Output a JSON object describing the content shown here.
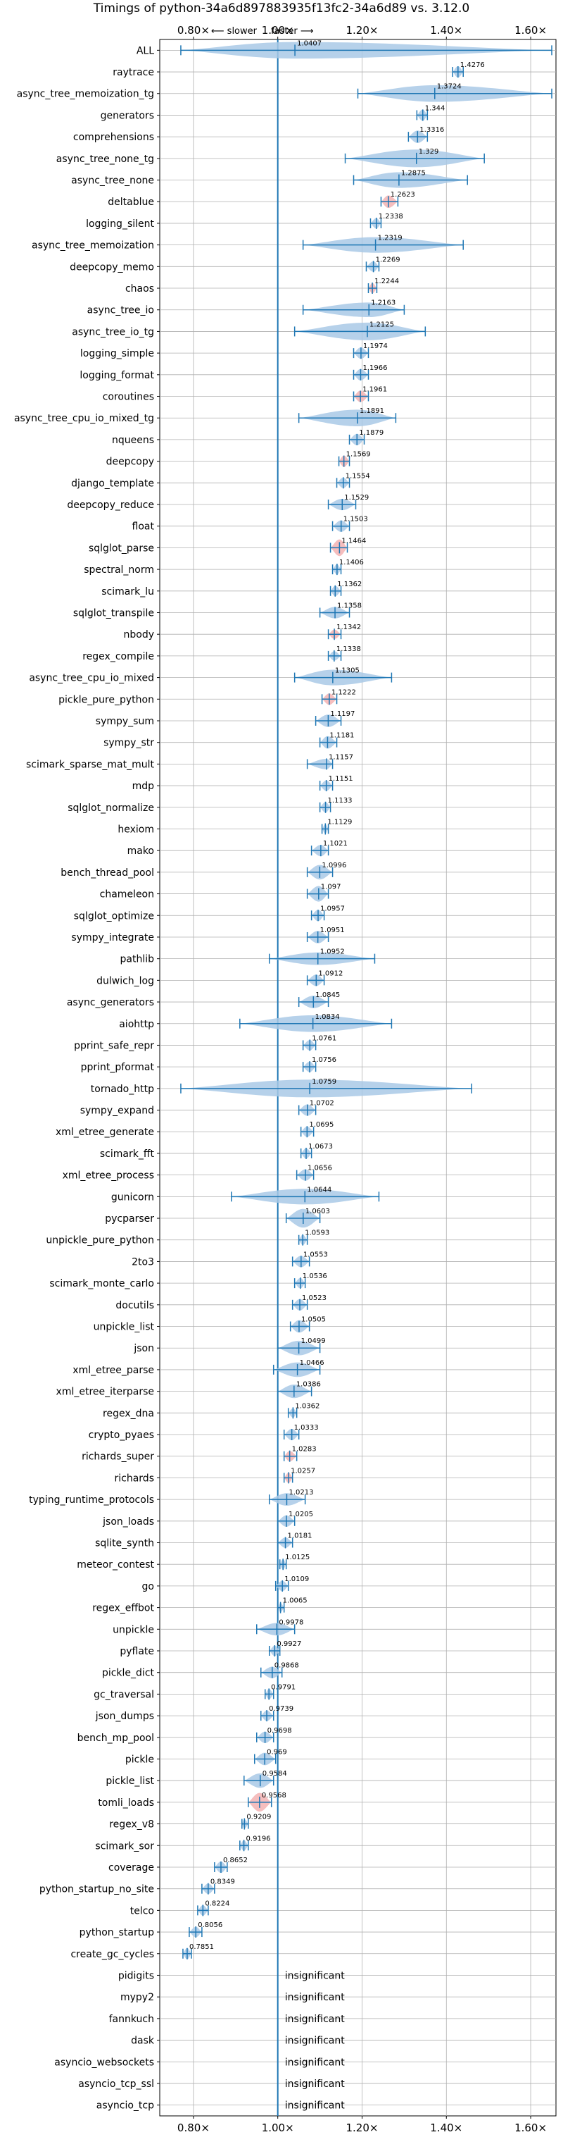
{
  "chart_data": {
    "type": "violin",
    "title": "Timings of python-34a6d897883935f13fc2-34a6d89 vs. 3.12.0",
    "direction_labels": {
      "slower": "⟵ slower",
      "faster": "faster ⟶"
    },
    "xlim": [
      0.72,
      1.66
    ],
    "x_ticks": [
      0.8,
      1.0,
      1.2,
      1.4,
      1.6
    ],
    "x_tick_labels": [
      "0.80×",
      "1.00×",
      "1.20×",
      "1.40×",
      "1.60×"
    ],
    "grid": true,
    "reference_line": 1.0,
    "insignificant_label": "insignificant",
    "colors": {
      "violin": "#a9c9e6",
      "violin_highlight": "#f3b3b3",
      "line": "#1f77b4",
      "grid": "#b0b0b0",
      "ref": "#1f77b4"
    },
    "benchmarks": [
      {
        "name": "ALL",
        "value": 1.0407,
        "lo": 0.77,
        "hi": 1.65,
        "w": 0.8
      },
      {
        "name": "raytrace",
        "value": 1.4276,
        "lo": 1.415,
        "hi": 1.44,
        "w": 0.55
      },
      {
        "name": "async_tree_memoization_tg",
        "value": 1.3724,
        "lo": 1.19,
        "hi": 1.65,
        "w": 0.8
      },
      {
        "name": "generators",
        "value": 1.344,
        "lo": 1.33,
        "hi": 1.355,
        "w": 0.55
      },
      {
        "name": "comprehensions",
        "value": 1.3316,
        "lo": 1.31,
        "hi": 1.355,
        "w": 0.6
      },
      {
        "name": "async_tree_none_tg",
        "value": 1.329,
        "lo": 1.16,
        "hi": 1.49,
        "w": 0.85
      },
      {
        "name": "async_tree_none",
        "value": 1.2875,
        "lo": 1.18,
        "hi": 1.45,
        "w": 0.75
      },
      {
        "name": "deltablue",
        "value": 1.2623,
        "lo": 1.245,
        "hi": 1.285,
        "w": 0.6,
        "highlight": true
      },
      {
        "name": "logging_silent",
        "value": 1.2338,
        "lo": 1.22,
        "hi": 1.245,
        "w": 0.5
      },
      {
        "name": "async_tree_memoization",
        "value": 1.2319,
        "lo": 1.06,
        "hi": 1.44,
        "w": 0.75
      },
      {
        "name": "deepcopy_memo",
        "value": 1.2269,
        "lo": 1.21,
        "hi": 1.24,
        "w": 0.5
      },
      {
        "name": "chaos",
        "value": 1.2244,
        "lo": 1.215,
        "hi": 1.235,
        "w": 0.5,
        "highlight": true
      },
      {
        "name": "async_tree_io",
        "value": 1.2163,
        "lo": 1.06,
        "hi": 1.3,
        "w": 0.7
      },
      {
        "name": "async_tree_io_tg",
        "value": 1.2125,
        "lo": 1.04,
        "hi": 1.35,
        "w": 0.85
      },
      {
        "name": "logging_simple",
        "value": 1.1974,
        "lo": 1.18,
        "hi": 1.215,
        "w": 0.55
      },
      {
        "name": "logging_format",
        "value": 1.1966,
        "lo": 1.18,
        "hi": 1.215,
        "w": 0.55
      },
      {
        "name": "coroutines",
        "value": 1.1961,
        "lo": 1.18,
        "hi": 1.215,
        "w": 0.55,
        "highlight": true
      },
      {
        "name": "async_tree_cpu_io_mixed_tg",
        "value": 1.1891,
        "lo": 1.05,
        "hi": 1.28,
        "w": 0.8
      },
      {
        "name": "nqueens",
        "value": 1.1879,
        "lo": 1.17,
        "hi": 1.205,
        "w": 0.55
      },
      {
        "name": "deepcopy",
        "value": 1.1569,
        "lo": 1.145,
        "hi": 1.17,
        "w": 0.55,
        "highlight": true
      },
      {
        "name": "django_template",
        "value": 1.1554,
        "lo": 1.14,
        "hi": 1.17,
        "w": 0.5
      },
      {
        "name": "deepcopy_reduce",
        "value": 1.1529,
        "lo": 1.12,
        "hi": 1.185,
        "w": 0.55
      },
      {
        "name": "float",
        "value": 1.1503,
        "lo": 1.13,
        "hi": 1.17,
        "w": 0.55
      },
      {
        "name": "sqlglot_parse",
        "value": 1.1464,
        "lo": 1.125,
        "hi": 1.165,
        "w": 0.8,
        "highlight": true
      },
      {
        "name": "spectral_norm",
        "value": 1.1406,
        "lo": 1.13,
        "hi": 1.15,
        "w": 0.5
      },
      {
        "name": "scimark_lu",
        "value": 1.1362,
        "lo": 1.125,
        "hi": 1.15,
        "w": 0.5
      },
      {
        "name": "sqlglot_transpile",
        "value": 1.1358,
        "lo": 1.1,
        "hi": 1.17,
        "w": 0.55
      },
      {
        "name": "nbody",
        "value": 1.1342,
        "lo": 1.12,
        "hi": 1.15,
        "w": 0.45,
        "highlight": true
      },
      {
        "name": "regex_compile",
        "value": 1.1338,
        "lo": 1.12,
        "hi": 1.15,
        "w": 0.45
      },
      {
        "name": "async_tree_cpu_io_mixed",
        "value": 1.1305,
        "lo": 1.04,
        "hi": 1.27,
        "w": 0.75
      },
      {
        "name": "pickle_pure_python",
        "value": 1.1222,
        "lo": 1.105,
        "hi": 1.14,
        "w": 0.55,
        "highlight": true
      },
      {
        "name": "sympy_sum",
        "value": 1.1197,
        "lo": 1.09,
        "hi": 1.15,
        "w": 0.6
      },
      {
        "name": "sympy_str",
        "value": 1.1181,
        "lo": 1.1,
        "hi": 1.14,
        "w": 0.6
      },
      {
        "name": "scimark_sparse_mat_mult",
        "value": 1.1157,
        "lo": 1.07,
        "hi": 1.13,
        "w": 0.5
      },
      {
        "name": "mdp",
        "value": 1.1151,
        "lo": 1.1,
        "hi": 1.13,
        "w": 0.5
      },
      {
        "name": "sqlglot_normalize",
        "value": 1.1133,
        "lo": 1.1,
        "hi": 1.125,
        "w": 0.5
      },
      {
        "name": "hexiom",
        "value": 1.1129,
        "lo": 1.105,
        "hi": 1.12,
        "w": 0.45
      },
      {
        "name": "mako",
        "value": 1.1021,
        "lo": 1.08,
        "hi": 1.12,
        "w": 0.55
      },
      {
        "name": "bench_thread_pool",
        "value": 1.0996,
        "lo": 1.07,
        "hi": 1.13,
        "w": 0.7
      },
      {
        "name": "chameleon",
        "value": 1.097,
        "lo": 1.07,
        "hi": 1.12,
        "w": 0.75
      },
      {
        "name": "sqlglot_optimize",
        "value": 1.0957,
        "lo": 1.08,
        "hi": 1.11,
        "w": 0.55
      },
      {
        "name": "sympy_integrate",
        "value": 1.0951,
        "lo": 1.07,
        "hi": 1.12,
        "w": 0.6
      },
      {
        "name": "pathlib",
        "value": 1.0952,
        "lo": 0.98,
        "hi": 1.23,
        "w": 0.6
      },
      {
        "name": "dulwich_log",
        "value": 1.0912,
        "lo": 1.07,
        "hi": 1.11,
        "w": 0.55
      },
      {
        "name": "async_generators",
        "value": 1.0845,
        "lo": 1.05,
        "hi": 1.12,
        "w": 0.6
      },
      {
        "name": "aiohttp",
        "value": 1.0834,
        "lo": 0.91,
        "hi": 1.27,
        "w": 0.8
      },
      {
        "name": "pprint_safe_repr",
        "value": 1.0761,
        "lo": 1.06,
        "hi": 1.09,
        "w": 0.5
      },
      {
        "name": "pprint_pformat",
        "value": 1.0756,
        "lo": 1.06,
        "hi": 1.09,
        "w": 0.5
      },
      {
        "name": "tornado_http",
        "value": 1.0759,
        "lo": 0.77,
        "hi": 1.46,
        "w": 0.85
      },
      {
        "name": "sympy_expand",
        "value": 1.0702,
        "lo": 1.05,
        "hi": 1.09,
        "w": 0.55
      },
      {
        "name": "xml_etree_generate",
        "value": 1.0695,
        "lo": 1.055,
        "hi": 1.085,
        "w": 0.5
      },
      {
        "name": "scimark_fft",
        "value": 1.0673,
        "lo": 1.055,
        "hi": 1.08,
        "w": 0.5
      },
      {
        "name": "xml_etree_process",
        "value": 1.0656,
        "lo": 1.045,
        "hi": 1.085,
        "w": 0.55
      },
      {
        "name": "gunicorn",
        "value": 1.0644,
        "lo": 0.89,
        "hi": 1.24,
        "w": 0.75
      },
      {
        "name": "pycparser",
        "value": 1.0603,
        "lo": 1.02,
        "hi": 1.1,
        "w": 0.9
      },
      {
        "name": "unpickle_pure_python",
        "value": 1.0593,
        "lo": 1.05,
        "hi": 1.07,
        "w": 0.5
      },
      {
        "name": "2to3",
        "value": 1.0553,
        "lo": 1.035,
        "hi": 1.075,
        "w": 0.55
      },
      {
        "name": "scimark_monte_carlo",
        "value": 1.0536,
        "lo": 1.04,
        "hi": 1.065,
        "w": 0.5
      },
      {
        "name": "docutils",
        "value": 1.0523,
        "lo": 1.035,
        "hi": 1.07,
        "w": 0.55
      },
      {
        "name": "unpickle_list",
        "value": 1.0505,
        "lo": 1.03,
        "hi": 1.075,
        "w": 0.6
      },
      {
        "name": "json",
        "value": 1.0499,
        "lo": 1.0,
        "hi": 1.1,
        "w": 0.7
      },
      {
        "name": "xml_etree_parse",
        "value": 1.0466,
        "lo": 0.99,
        "hi": 1.1,
        "w": 0.7
      },
      {
        "name": "xml_etree_iterparse",
        "value": 1.0386,
        "lo": 1.0,
        "hi": 1.08,
        "w": 0.65
      },
      {
        "name": "regex_dna",
        "value": 1.0362,
        "lo": 1.025,
        "hi": 1.045,
        "w": 0.45
      },
      {
        "name": "crypto_pyaes",
        "value": 1.0333,
        "lo": 1.015,
        "hi": 1.05,
        "w": 0.55
      },
      {
        "name": "richards_super",
        "value": 1.0283,
        "lo": 1.015,
        "hi": 1.045,
        "w": 0.5,
        "highlight": true
      },
      {
        "name": "richards",
        "value": 1.0257,
        "lo": 1.015,
        "hi": 1.035,
        "w": 0.5,
        "highlight": true
      },
      {
        "name": "typing_runtime_protocols",
        "value": 1.0213,
        "lo": 0.98,
        "hi": 1.065,
        "w": 0.6
      },
      {
        "name": "json_loads",
        "value": 1.0205,
        "lo": 1.0,
        "hi": 1.04,
        "w": 0.55
      },
      {
        "name": "sqlite_synth",
        "value": 1.0181,
        "lo": 1.0,
        "hi": 1.035,
        "w": 0.5
      },
      {
        "name": "meteor_contest",
        "value": 1.0125,
        "lo": 1.005,
        "hi": 1.02,
        "w": 0.5
      },
      {
        "name": "go",
        "value": 1.0109,
        "lo": 0.995,
        "hi": 1.025,
        "w": 0.5
      },
      {
        "name": "regex_effbot",
        "value": 1.0065,
        "lo": 1.0,
        "hi": 1.015,
        "w": 0.45
      },
      {
        "name": "unpickle",
        "value": 0.9978,
        "lo": 0.95,
        "hi": 1.04,
        "w": 0.6
      },
      {
        "name": "pyflate",
        "value": 0.9927,
        "lo": 0.98,
        "hi": 1.005,
        "w": 0.5
      },
      {
        "name": "pickle_dict",
        "value": 0.9868,
        "lo": 0.96,
        "hi": 1.01,
        "w": 0.55
      },
      {
        "name": "gc_traversal",
        "value": 0.9791,
        "lo": 0.97,
        "hi": 0.99,
        "w": 0.5
      },
      {
        "name": "json_dumps",
        "value": 0.9739,
        "lo": 0.96,
        "hi": 0.99,
        "w": 0.5
      },
      {
        "name": "bench_mp_pool",
        "value": 0.9698,
        "lo": 0.95,
        "hi": 0.99,
        "w": 0.55
      },
      {
        "name": "pickle",
        "value": 0.969,
        "lo": 0.945,
        "hi": 0.995,
        "w": 0.6
      },
      {
        "name": "pickle_list",
        "value": 0.9584,
        "lo": 0.92,
        "hi": 0.99,
        "w": 0.7
      },
      {
        "name": "tomli_loads",
        "value": 0.9568,
        "lo": 0.93,
        "hi": 0.985,
        "w": 0.9,
        "highlight": true
      },
      {
        "name": "regex_v8",
        "value": 0.9209,
        "lo": 0.915,
        "hi": 0.93,
        "w": 0.45
      },
      {
        "name": "scimark_sor",
        "value": 0.9196,
        "lo": 0.91,
        "hi": 0.93,
        "w": 0.5
      },
      {
        "name": "coverage",
        "value": 0.8652,
        "lo": 0.85,
        "hi": 0.88,
        "w": 0.55
      },
      {
        "name": "python_startup_no_site",
        "value": 0.8349,
        "lo": 0.82,
        "hi": 0.85,
        "w": 0.5
      },
      {
        "name": "telco",
        "value": 0.8224,
        "lo": 0.81,
        "hi": 0.835,
        "w": 0.5
      },
      {
        "name": "python_startup",
        "value": 0.8056,
        "lo": 0.79,
        "hi": 0.82,
        "w": 0.5
      },
      {
        "name": "create_gc_cycles",
        "value": 0.7851,
        "lo": 0.775,
        "hi": 0.795,
        "w": 0.55
      },
      {
        "name": "pidigits",
        "value": null
      },
      {
        "name": "mypy2",
        "value": null
      },
      {
        "name": "fannkuch",
        "value": null
      },
      {
        "name": "dask",
        "value": null
      },
      {
        "name": "asyncio_websockets",
        "value": null
      },
      {
        "name": "asyncio_tcp_ssl",
        "value": null
      },
      {
        "name": "asyncio_tcp",
        "value": null
      }
    ]
  }
}
